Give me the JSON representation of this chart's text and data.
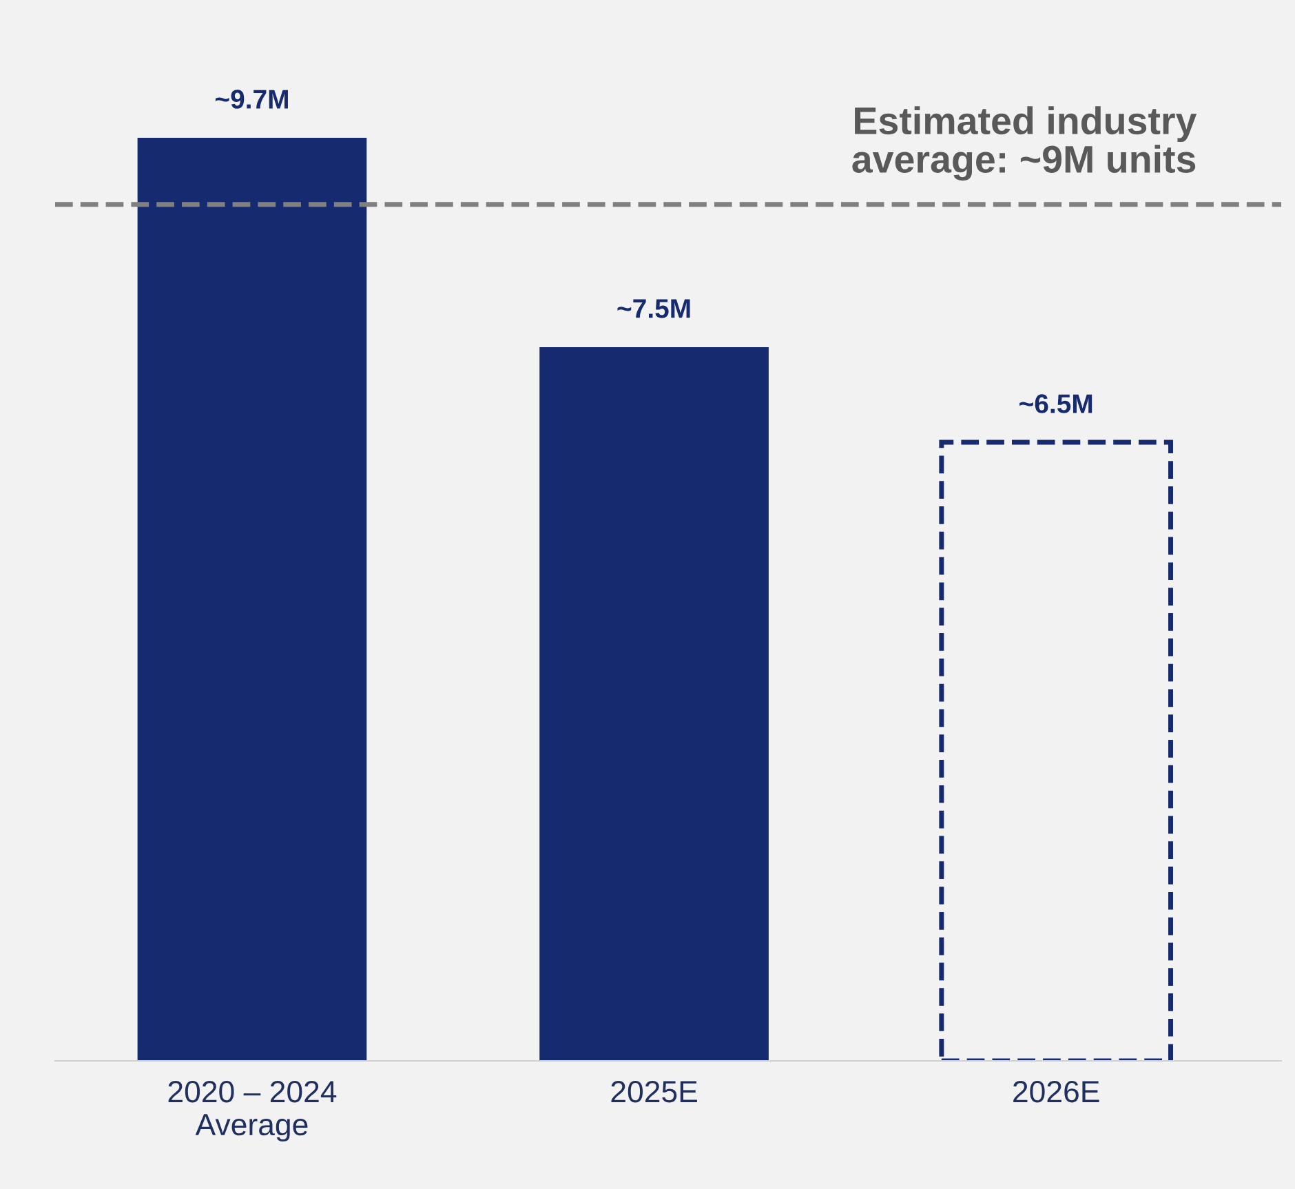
{
  "chart_data": {
    "type": "bar",
    "categories": [
      "2020 – 2024\nAverage",
      "2025E",
      "2026E"
    ],
    "series": [
      {
        "color": "#162b6f",
        "values": [
          9.7,
          7.5,
          null
        ],
        "value_labels": [
          "~9.7M",
          "~7.5M",
          null
        ]
      },
      {
        "color": "#162b6f",
        "values": [
          null,
          null,
          6.5
        ],
        "value_labels": [
          null,
          null,
          "~6.5M"
        ],
        "line_style": "dashed"
      }
    ],
    "tick_labels": "x",
    "grid": false,
    "legend": false,
    "ref_lines": [
      {
        "axis": "y",
        "value": 9,
        "label": "Estimated industry\naverage: ~9M units",
        "color": "#808080",
        "line_style": "dashed"
      }
    ]
  }
}
